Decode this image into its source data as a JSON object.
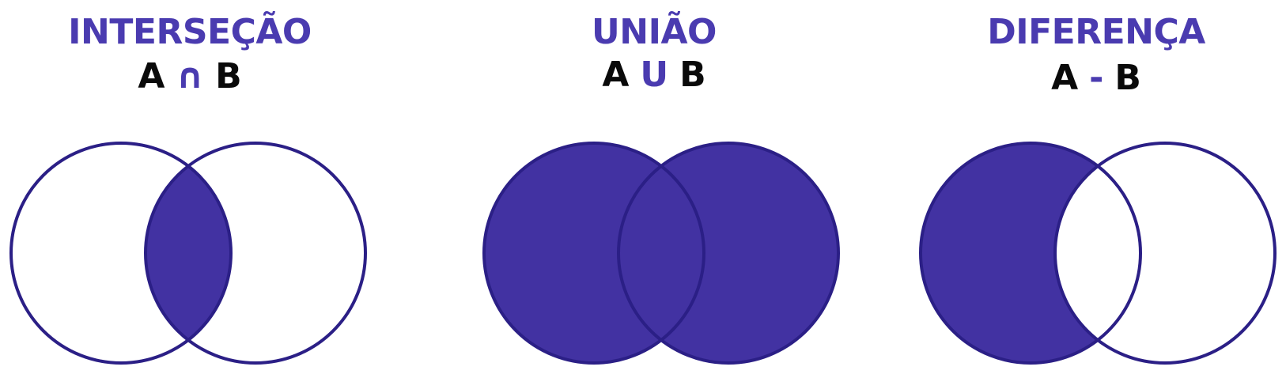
{
  "colors": {
    "accent": "#4232a2",
    "title": "#4a3bb0",
    "text": "#0a0a0a",
    "stroke": "#2b1f86",
    "background": "#ffffff"
  },
  "panels": [
    {
      "title": "INTERSEÇÃO",
      "set_a": "A",
      "operator": "∩",
      "set_b": "B",
      "shaded_region": "intersection"
    },
    {
      "title": "UNIÃO",
      "set_a": "A",
      "operator": "U",
      "set_b": "B",
      "shaded_region": "union"
    },
    {
      "title": "DIFERENÇA",
      "set_a": "A",
      "operator": "-",
      "set_b": "B",
      "shaded_region": "difference"
    }
  ]
}
